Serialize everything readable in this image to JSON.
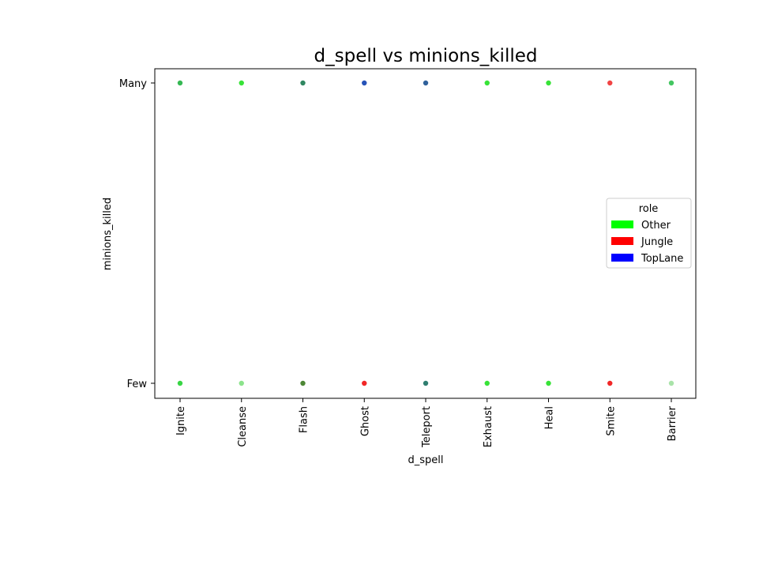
{
  "chart_data": {
    "type": "scatter",
    "title": "d_spell vs minions_killed",
    "xlabel": "d_spell",
    "ylabel": "minions_killed",
    "categories": [
      "Ignite",
      "Cleanse",
      "Flash",
      "Ghost",
      "Teleport",
      "Exhaust",
      "Heal",
      "Smite",
      "Barrier"
    ],
    "y_categories": [
      "Few",
      "Many"
    ],
    "grid": false,
    "legend": {
      "title": "role",
      "placement": "center-right",
      "entries": [
        {
          "name": "Other",
          "color": "#00ff00"
        },
        {
          "name": "Jungle",
          "color": "#ff0000"
        },
        {
          "name": "TopLane",
          "color": "#0000ff"
        }
      ]
    },
    "points": [
      {
        "x": "Ignite",
        "y": "Many",
        "color": "#1fb040"
      },
      {
        "x": "Cleanse",
        "y": "Many",
        "color": "#22e022"
      },
      {
        "x": "Flash",
        "y": "Many",
        "color": "#1a7a50"
      },
      {
        "x": "Ghost",
        "y": "Many",
        "color": "#1040b0"
      },
      {
        "x": "Teleport",
        "y": "Many",
        "color": "#1a5090"
      },
      {
        "x": "Exhaust",
        "y": "Many",
        "color": "#22e022"
      },
      {
        "x": "Heal",
        "y": "Many",
        "color": "#22e022"
      },
      {
        "x": "Smite",
        "y": "Many",
        "color": "#f03030"
      },
      {
        "x": "Barrier",
        "y": "Many",
        "color": "#30c050"
      },
      {
        "x": "Ignite",
        "y": "Few",
        "color": "#22d030"
      },
      {
        "x": "Cleanse",
        "y": "Few",
        "color": "#80e080"
      },
      {
        "x": "Flash",
        "y": "Few",
        "color": "#3a7a20"
      },
      {
        "x": "Ghost",
        "y": "Few",
        "color": "#f01010"
      },
      {
        "x": "Teleport",
        "y": "Few",
        "color": "#1a7060"
      },
      {
        "x": "Exhaust",
        "y": "Few",
        "color": "#22e022"
      },
      {
        "x": "Heal",
        "y": "Few",
        "color": "#22e022"
      },
      {
        "x": "Smite",
        "y": "Few",
        "color": "#f01010"
      },
      {
        "x": "Barrier",
        "y": "Few",
        "color": "#a0e0a0"
      }
    ]
  }
}
